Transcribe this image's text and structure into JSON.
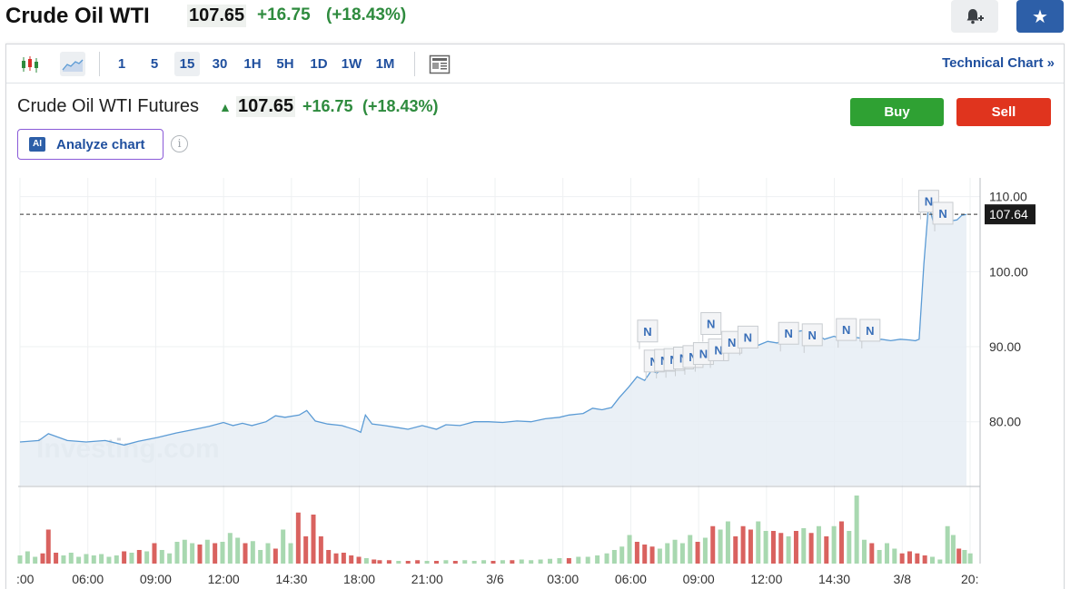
{
  "header": {
    "title": "Crude Oil WTI",
    "price": "107.65",
    "change": "+16.75",
    "change_pct": "(+18.43%)"
  },
  "toolbar": {
    "timeframes": [
      "1",
      "5",
      "15",
      "30",
      "1H",
      "5H",
      "1D",
      "1W",
      "1M"
    ],
    "selected_timeframe": "15",
    "technical_link": "Technical Chart »"
  },
  "quote": {
    "name": "Crude Oil WTI Futures",
    "price": "107.65",
    "change": "+16.75",
    "change_pct": "(+18.43%)",
    "buy_label": "Buy",
    "sell_label": "Sell",
    "analyze_label": "Analyze chart",
    "ai_badge": "AI",
    "info_glyph": "i"
  },
  "colors": {
    "line": "#5b9bd5",
    "area": "#e6edf5",
    "up_volume": "#a8d8b0",
    "down_volume": "#d9625f",
    "news_flag": "#3a6fb8",
    "positive": "#2e8b3e"
  },
  "chart_data": {
    "type": "area",
    "watermark": "Investing.com",
    "x_tick_labels": [
      ":00",
      "06:00",
      "09:00",
      "12:00",
      "14:30",
      "18:00",
      "21:00",
      "3/6",
      "03:00",
      "06:00",
      "09:00",
      "12:00",
      "14:30",
      "3/8",
      "20:"
    ],
    "y_tick_labels": [
      "110.00",
      "100.00",
      "90.00",
      "80.00"
    ],
    "y_ticks": [
      110,
      100,
      90,
      80
    ],
    "ylim": [
      71.5,
      112.5
    ],
    "last_price_label": "107.64",
    "last_price": 107.64,
    "news_flag_label": "N",
    "news_flags": [
      {
        "x": 0.665,
        "y": 93.3
      },
      {
        "x": 0.672,
        "y": 89.3
      },
      {
        "x": 0.683,
        "y": 89.4
      },
      {
        "x": 0.693,
        "y": 89.5
      },
      {
        "x": 0.703,
        "y": 89.7
      },
      {
        "x": 0.713,
        "y": 89.9
      },
      {
        "x": 0.724,
        "y": 90.3
      },
      {
        "x": 0.732,
        "y": 94.3
      },
      {
        "x": 0.74,
        "y": 90.8
      },
      {
        "x": 0.754,
        "y": 91.8
      },
      {
        "x": 0.771,
        "y": 92.5
      },
      {
        "x": 0.814,
        "y": 93.0
      },
      {
        "x": 0.839,
        "y": 92.8
      },
      {
        "x": 0.875,
        "y": 93.5
      },
      {
        "x": 0.9,
        "y": 93.4
      },
      {
        "x": 0.962,
        "y": 110.6
      },
      {
        "x": 0.977,
        "y": 109.0
      }
    ],
    "price_series": [
      [
        0.0,
        77.3
      ],
      [
        0.02,
        77.5
      ],
      [
        0.03,
        78.4
      ],
      [
        0.05,
        77.5
      ],
      [
        0.07,
        77.3
      ],
      [
        0.09,
        77.5
      ],
      [
        0.11,
        76.9
      ],
      [
        0.125,
        77.4
      ],
      [
        0.145,
        77.9
      ],
      [
        0.165,
        78.5
      ],
      [
        0.185,
        79.0
      ],
      [
        0.2,
        79.4
      ],
      [
        0.215,
        79.9
      ],
      [
        0.225,
        79.5
      ],
      [
        0.235,
        79.8
      ],
      [
        0.245,
        79.5
      ],
      [
        0.26,
        80.0
      ],
      [
        0.27,
        80.8
      ],
      [
        0.28,
        80.6
      ],
      [
        0.295,
        80.9
      ],
      [
        0.303,
        81.5
      ],
      [
        0.312,
        80.1
      ],
      [
        0.325,
        79.7
      ],
      [
        0.34,
        79.5
      ],
      [
        0.355,
        78.9
      ],
      [
        0.36,
        78.6
      ],
      [
        0.365,
        80.9
      ],
      [
        0.372,
        79.7
      ],
      [
        0.385,
        79.5
      ],
      [
        0.4,
        79.2
      ],
      [
        0.41,
        79.0
      ],
      [
        0.425,
        79.5
      ],
      [
        0.44,
        79.0
      ],
      [
        0.45,
        79.6
      ],
      [
        0.465,
        79.5
      ],
      [
        0.48,
        80.0
      ],
      [
        0.495,
        80.0
      ],
      [
        0.51,
        79.9
      ],
      [
        0.525,
        80.1
      ],
      [
        0.54,
        80.0
      ],
      [
        0.555,
        80.4
      ],
      [
        0.57,
        80.6
      ],
      [
        0.58,
        80.9
      ],
      [
        0.595,
        81.1
      ],
      [
        0.605,
        81.8
      ],
      [
        0.615,
        81.6
      ],
      [
        0.625,
        81.9
      ],
      [
        0.633,
        83.2
      ],
      [
        0.643,
        84.6
      ],
      [
        0.652,
        86.0
      ],
      [
        0.66,
        85.5
      ],
      [
        0.667,
        86.8
      ],
      [
        0.673,
        86.5
      ],
      [
        0.68,
        87.2
      ],
      [
        0.686,
        87.4
      ],
      [
        0.69,
        88.0
      ],
      [
        0.695,
        88.2
      ],
      [
        0.7,
        87.8
      ],
      [
        0.705,
        88.5
      ],
      [
        0.71,
        87.5
      ],
      [
        0.715,
        88.6
      ],
      [
        0.72,
        88.3
      ],
      [
        0.727,
        88.7
      ],
      [
        0.734,
        89.0
      ],
      [
        0.74,
        89.4
      ],
      [
        0.75,
        89.9
      ],
      [
        0.76,
        90.2
      ],
      [
        0.77,
        90.6
      ],
      [
        0.78,
        90.2
      ],
      [
        0.79,
        90.7
      ],
      [
        0.8,
        90.5
      ],
      [
        0.81,
        91.0
      ],
      [
        0.82,
        92.0
      ],
      [
        0.83,
        92.2
      ],
      [
        0.84,
        91.8
      ],
      [
        0.85,
        91.0
      ],
      [
        0.86,
        91.4
      ],
      [
        0.87,
        91.0
      ],
      [
        0.88,
        91.3
      ],
      [
        0.89,
        91.1
      ],
      [
        0.9,
        90.8
      ],
      [
        0.91,
        91.0
      ],
      [
        0.92,
        90.8
      ],
      [
        0.93,
        91.0
      ],
      [
        0.94,
        90.9
      ],
      [
        0.946,
        90.8
      ],
      [
        0.95,
        91.0
      ],
      [
        0.955,
        101.0
      ],
      [
        0.96,
        109.0
      ],
      [
        0.965,
        106.6
      ],
      [
        0.97,
        108.6
      ],
      [
        0.975,
        107.4
      ],
      [
        0.98,
        108.5
      ],
      [
        0.985,
        106.8
      ],
      [
        0.99,
        106.9
      ],
      [
        0.995,
        107.5
      ],
      [
        1.0,
        107.64
      ]
    ],
    "volume_bars": [
      [
        0.0,
        0.12,
        1
      ],
      [
        0.008,
        0.18,
        1
      ],
      [
        0.016,
        0.1,
        1
      ],
      [
        0.024,
        0.15,
        0
      ],
      [
        0.03,
        0.5,
        0
      ],
      [
        0.038,
        0.16,
        0
      ],
      [
        0.046,
        0.12,
        1
      ],
      [
        0.054,
        0.16,
        1
      ],
      [
        0.062,
        0.1,
        1
      ],
      [
        0.07,
        0.14,
        1
      ],
      [
        0.078,
        0.12,
        1
      ],
      [
        0.086,
        0.14,
        1
      ],
      [
        0.094,
        0.1,
        1
      ],
      [
        0.102,
        0.12,
        1
      ],
      [
        0.11,
        0.18,
        0
      ],
      [
        0.118,
        0.16,
        1
      ],
      [
        0.126,
        0.2,
        0
      ],
      [
        0.134,
        0.18,
        1
      ],
      [
        0.142,
        0.3,
        0
      ],
      [
        0.15,
        0.2,
        1
      ],
      [
        0.158,
        0.15,
        1
      ],
      [
        0.166,
        0.32,
        1
      ],
      [
        0.174,
        0.35,
        1
      ],
      [
        0.182,
        0.3,
        1
      ],
      [
        0.19,
        0.28,
        0
      ],
      [
        0.198,
        0.35,
        1
      ],
      [
        0.206,
        0.3,
        0
      ],
      [
        0.214,
        0.32,
        1
      ],
      [
        0.222,
        0.45,
        1
      ],
      [
        0.23,
        0.38,
        1
      ],
      [
        0.238,
        0.3,
        0
      ],
      [
        0.246,
        0.33,
        1
      ],
      [
        0.254,
        0.2,
        1
      ],
      [
        0.262,
        0.3,
        1
      ],
      [
        0.27,
        0.22,
        0
      ],
      [
        0.278,
        0.5,
        1
      ],
      [
        0.286,
        0.3,
        1
      ],
      [
        0.294,
        0.75,
        0
      ],
      [
        0.302,
        0.4,
        0
      ],
      [
        0.31,
        0.72,
        0
      ],
      [
        0.318,
        0.4,
        0
      ],
      [
        0.326,
        0.2,
        0
      ],
      [
        0.334,
        0.15,
        0
      ],
      [
        0.342,
        0.16,
        0
      ],
      [
        0.35,
        0.12,
        0
      ],
      [
        0.358,
        0.1,
        0
      ],
      [
        0.366,
        0.08,
        1
      ],
      [
        0.374,
        0.06,
        0
      ],
      [
        0.38,
        0.05,
        0
      ],
      [
        0.39,
        0.05,
        0
      ],
      [
        0.4,
        0.04,
        1
      ],
      [
        0.41,
        0.04,
        0
      ],
      [
        0.42,
        0.05,
        0
      ],
      [
        0.43,
        0.04,
        1
      ],
      [
        0.44,
        0.04,
        0
      ],
      [
        0.45,
        0.05,
        1
      ],
      [
        0.46,
        0.04,
        0
      ],
      [
        0.47,
        0.05,
        1
      ],
      [
        0.48,
        0.04,
        1
      ],
      [
        0.49,
        0.05,
        1
      ],
      [
        0.5,
        0.04,
        0
      ],
      [
        0.51,
        0.05,
        1
      ],
      [
        0.52,
        0.05,
        0
      ],
      [
        0.53,
        0.06,
        1
      ],
      [
        0.54,
        0.05,
        1
      ],
      [
        0.55,
        0.06,
        1
      ],
      [
        0.56,
        0.07,
        1
      ],
      [
        0.57,
        0.08,
        1
      ],
      [
        0.58,
        0.08,
        0
      ],
      [
        0.59,
        0.1,
        1
      ],
      [
        0.6,
        0.1,
        1
      ],
      [
        0.61,
        0.12,
        1
      ],
      [
        0.62,
        0.15,
        1
      ],
      [
        0.628,
        0.2,
        1
      ],
      [
        0.636,
        0.25,
        1
      ],
      [
        0.644,
        0.42,
        1
      ],
      [
        0.652,
        0.32,
        0
      ],
      [
        0.66,
        0.28,
        0
      ],
      [
        0.668,
        0.25,
        0
      ],
      [
        0.676,
        0.22,
        1
      ],
      [
        0.684,
        0.3,
        1
      ],
      [
        0.692,
        0.35,
        1
      ],
      [
        0.7,
        0.3,
        1
      ],
      [
        0.708,
        0.42,
        1
      ],
      [
        0.716,
        0.32,
        0
      ],
      [
        0.724,
        0.38,
        1
      ],
      [
        0.732,
        0.55,
        0
      ],
      [
        0.74,
        0.5,
        1
      ],
      [
        0.748,
        0.62,
        1
      ],
      [
        0.756,
        0.4,
        0
      ],
      [
        0.764,
        0.55,
        0
      ],
      [
        0.772,
        0.5,
        0
      ],
      [
        0.78,
        0.62,
        1
      ],
      [
        0.788,
        0.48,
        1
      ],
      [
        0.796,
        0.48,
        0
      ],
      [
        0.804,
        0.45,
        0
      ],
      [
        0.812,
        0.4,
        1
      ],
      [
        0.82,
        0.48,
        0
      ],
      [
        0.828,
        0.52,
        1
      ],
      [
        0.836,
        0.45,
        0
      ],
      [
        0.844,
        0.55,
        1
      ],
      [
        0.852,
        0.4,
        0
      ],
      [
        0.86,
        0.55,
        1
      ],
      [
        0.868,
        0.62,
        0
      ],
      [
        0.876,
        0.48,
        1
      ],
      [
        0.884,
        1.0,
        1
      ],
      [
        0.892,
        0.35,
        1
      ],
      [
        0.9,
        0.3,
        0
      ],
      [
        0.908,
        0.2,
        1
      ],
      [
        0.916,
        0.3,
        1
      ],
      [
        0.924,
        0.22,
        1
      ],
      [
        0.932,
        0.15,
        0
      ],
      [
        0.94,
        0.18,
        0
      ],
      [
        0.948,
        0.15,
        0
      ],
      [
        0.956,
        0.12,
        0
      ],
      [
        0.964,
        0.1,
        1
      ],
      [
        0.972,
        0.06,
        1
      ],
      [
        0.98,
        0.55,
        1
      ],
      [
        0.986,
        0.42,
        1
      ],
      [
        0.992,
        0.22,
        0
      ],
      [
        0.998,
        0.2,
        1
      ],
      [
        1.004,
        0.15,
        1
      ]
    ]
  }
}
